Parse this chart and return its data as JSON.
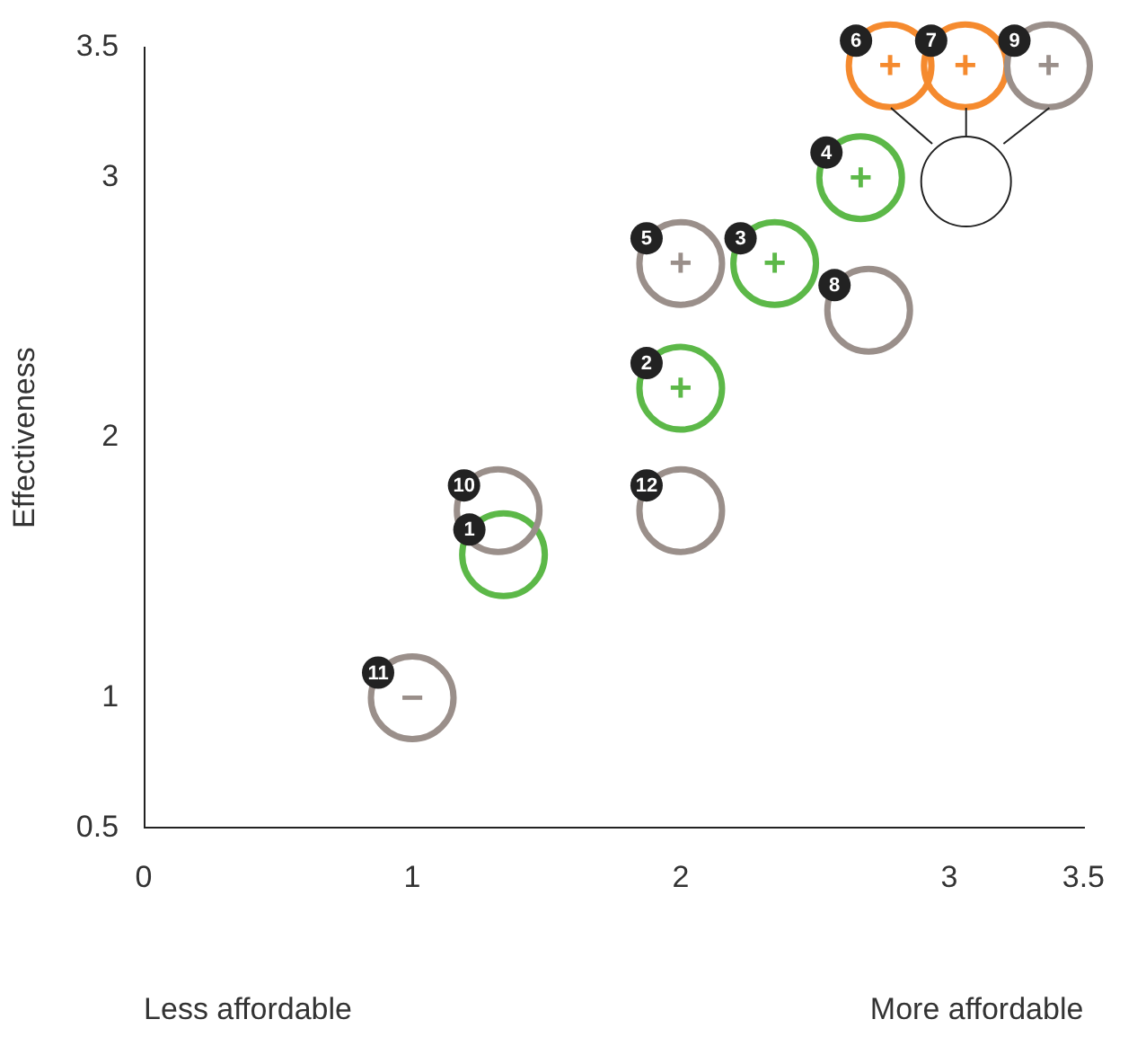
{
  "chart_data": {
    "type": "scatter",
    "ylabel": "Effectiveness",
    "x": [
      1.34,
      2.0,
      2.35,
      2.67,
      2.0,
      2.78,
      3.06,
      2.7,
      3.37,
      1.32,
      1.0,
      2.0
    ],
    "values": [
      1.55,
      2.19,
      2.67,
      3.0,
      2.67,
      3.43,
      3.43,
      2.49,
      3.43,
      1.72,
      1.0,
      1.72
    ],
    "colors": [
      "#5cb848",
      "#5cb848",
      "#5cb848",
      "#5cb848",
      "#9a8f8a",
      "#f58a2e",
      "#f58a2e",
      "#9a8f8a",
      "#9a8f8a",
      "#9a8f8a",
      "#9a8f8a",
      "#9a8f8a"
    ],
    "value_labels": [
      null,
      "+",
      "+",
      "+",
      "+",
      "+",
      "+",
      null,
      "+",
      null,
      "−",
      null
    ],
    "annotations": [
      {
        "text": "1",
        "x": 1.34,
        "y": 1.55
      },
      {
        "text": "2",
        "x": 2.0,
        "y": 2.19
      },
      {
        "text": "3",
        "x": 2.35,
        "y": 2.67
      },
      {
        "text": "4",
        "x": 2.67,
        "y": 3.0
      },
      {
        "text": "5",
        "x": 2.0,
        "y": 2.67
      },
      {
        "text": "6",
        "x": 2.78,
        "y": 3.43
      },
      {
        "text": "7",
        "x": 3.06,
        "y": 3.43
      },
      {
        "text": "8",
        "x": 2.7,
        "y": 2.49
      },
      {
        "text": "9",
        "x": 3.37,
        "y": 3.43
      },
      {
        "text": "10",
        "x": 1.32,
        "y": 1.72
      },
      {
        "text": "11",
        "x": 1.0,
        "y": 1.0
      },
      {
        "text": "12",
        "x": 2.0,
        "y": 1.72
      },
      "Less affordable",
      "More affordable"
    ],
    "xlim": [
      0,
      3.5
    ],
    "xticks": [
      0,
      1,
      2,
      3,
      3.5
    ],
    "ylim": [
      0.5,
      3.5
    ],
    "yticks": [
      0.5,
      1,
      2,
      3,
      3.5
    ],
    "grid": false,
    "legend": false,
    "marker": "circle"
  }
}
